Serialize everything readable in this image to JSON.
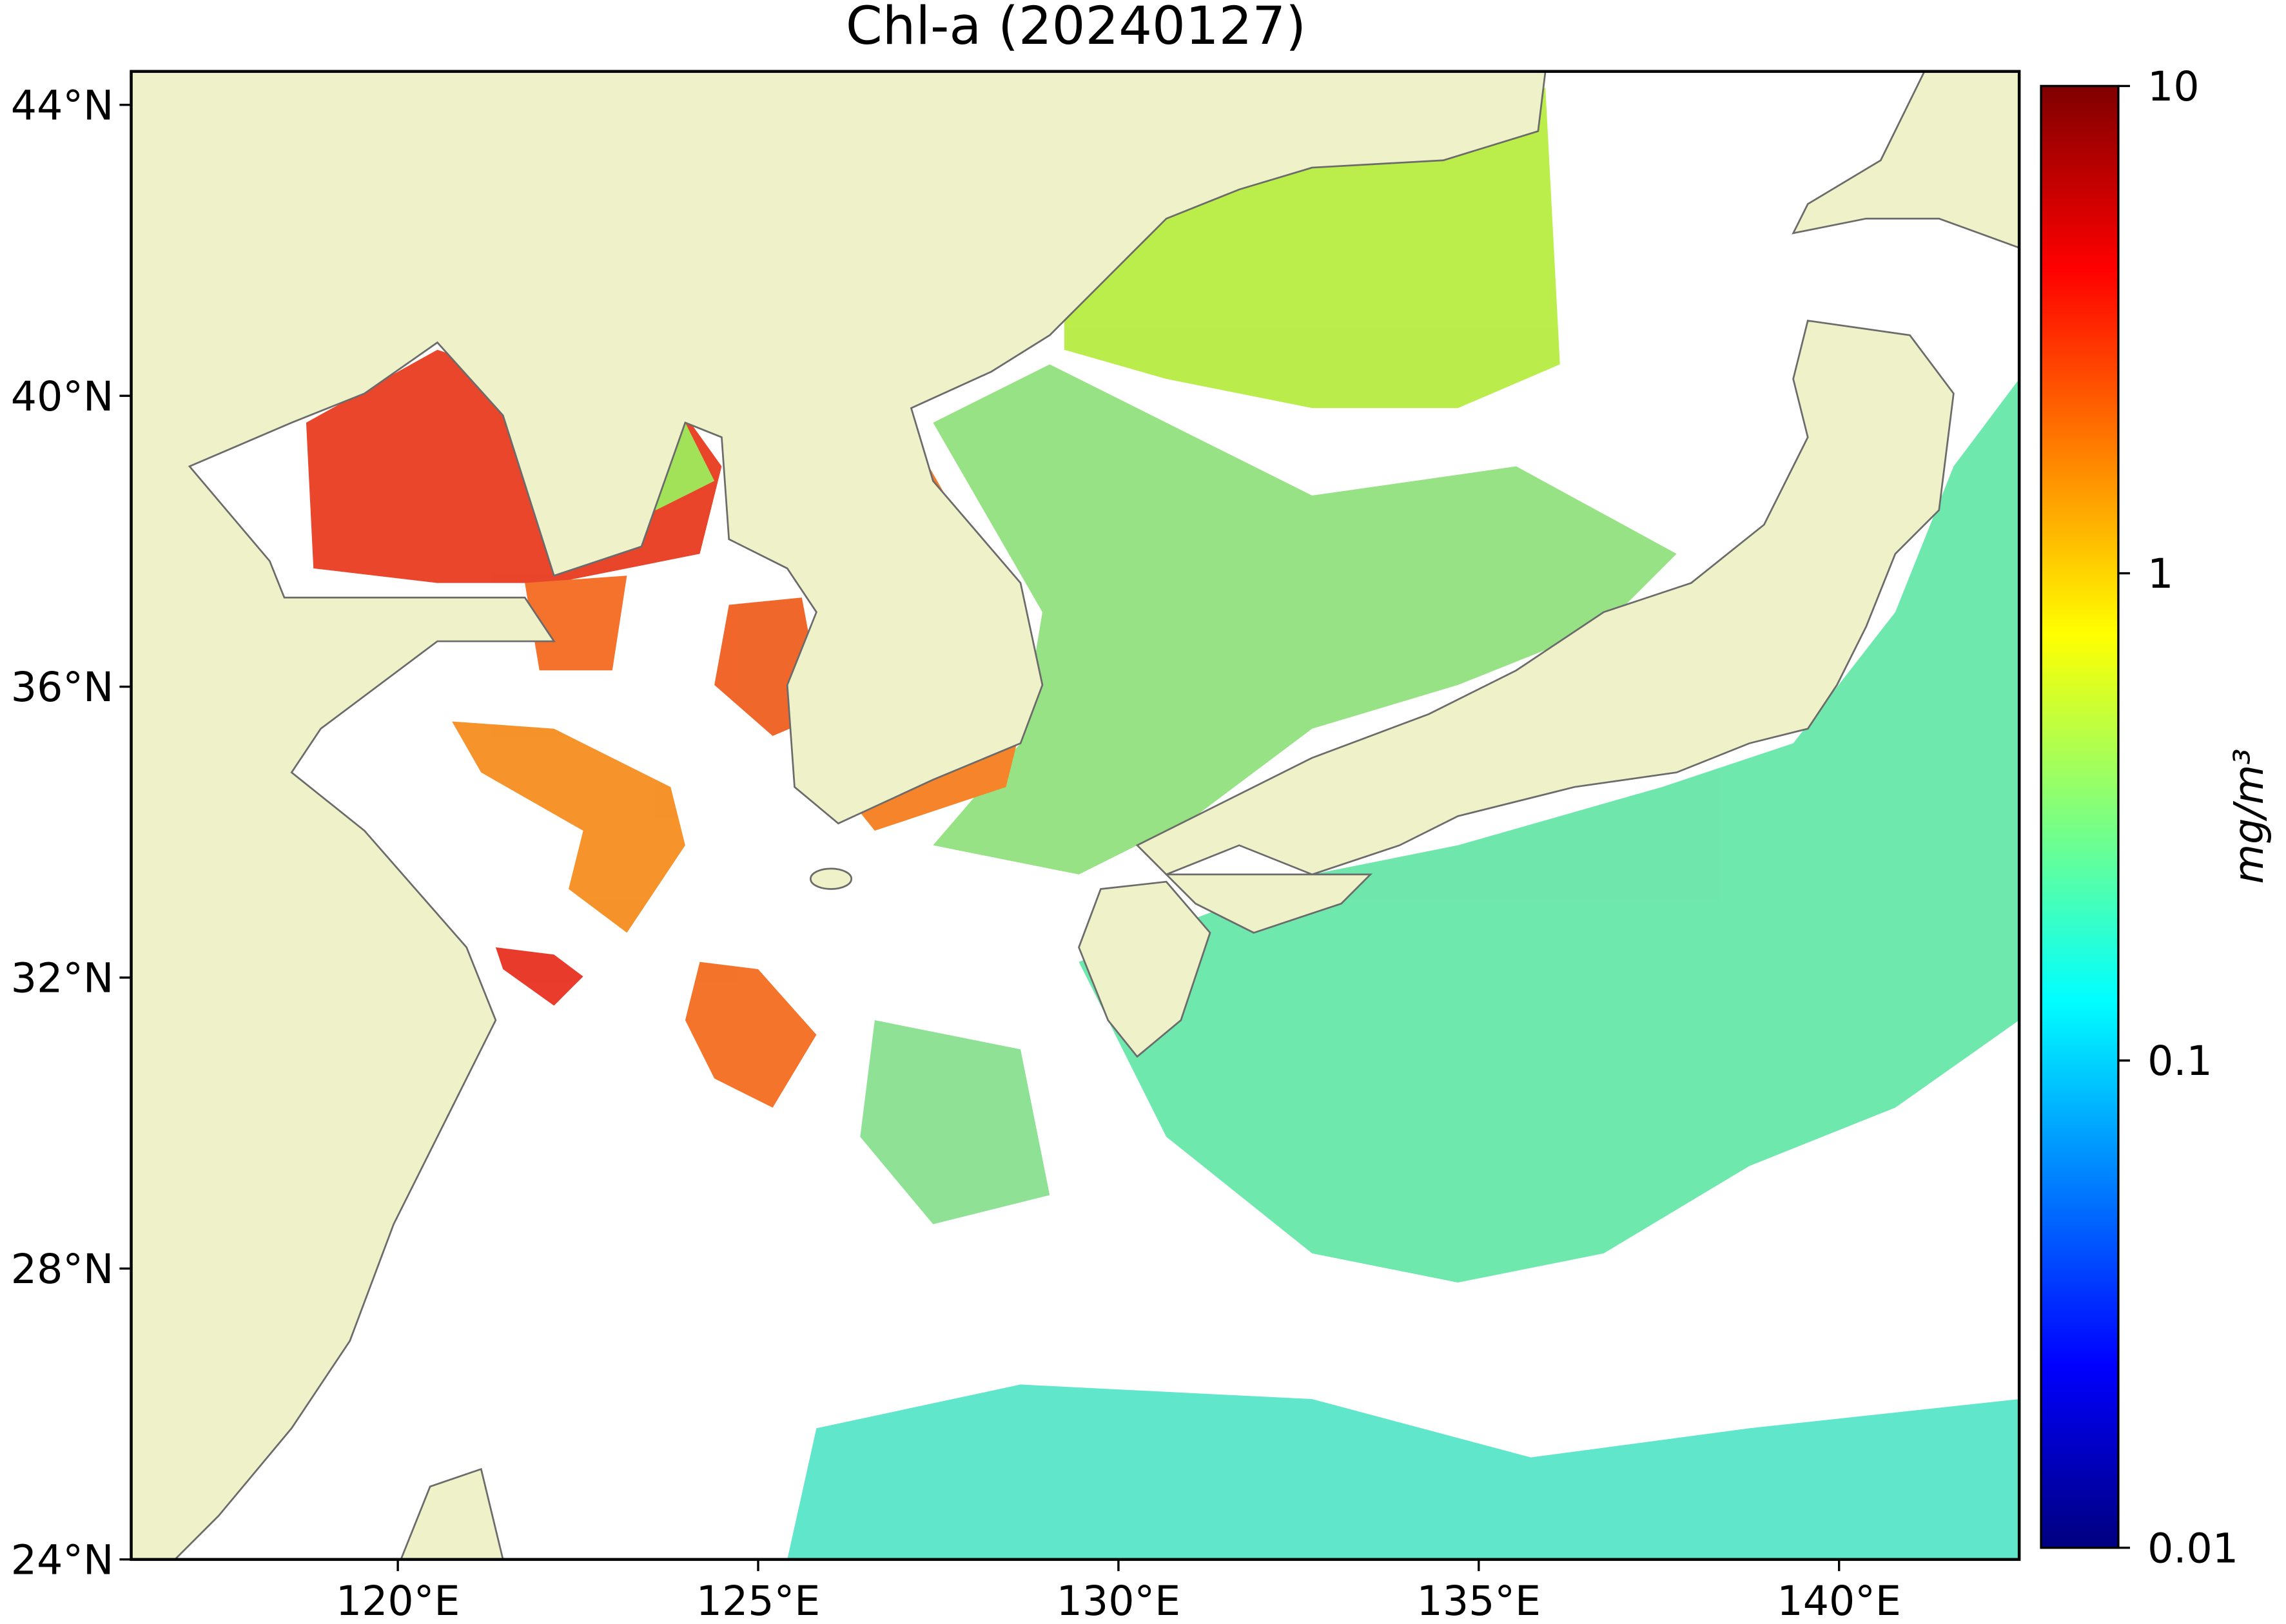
{
  "title": "Chl-a (20240127)",
  "map": {
    "xlim": [
      116.3,
      142.5
    ],
    "ylim": [
      24,
      44.46
    ],
    "xticks": [
      {
        "value": 120,
        "label": "120°E"
      },
      {
        "value": 125,
        "label": "125°E"
      },
      {
        "value": 130,
        "label": "130°E"
      },
      {
        "value": 135,
        "label": "135°E"
      },
      {
        "value": 140,
        "label": "140°E"
      }
    ],
    "yticks": [
      {
        "value": 24,
        "label": "24°N"
      },
      {
        "value": 28,
        "label": "28°N"
      },
      {
        "value": 32,
        "label": "32°N"
      },
      {
        "value": 36,
        "label": "36°N"
      },
      {
        "value": 40,
        "label": "40°N"
      },
      {
        "value": 44,
        "label": "44°N"
      }
    ]
  },
  "colorbar": {
    "label": "mg/m³",
    "colormap": "jet",
    "scale": "log",
    "lim": [
      0.01,
      10
    ],
    "ticks": [
      0.01,
      0.1,
      1,
      10
    ]
  }
}
